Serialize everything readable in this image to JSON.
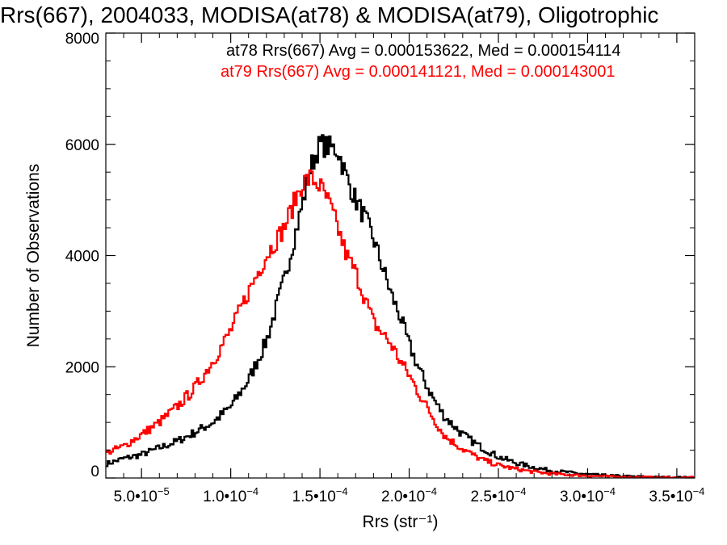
{
  "chart_data": {
    "type": "line",
    "title": "Rrs(667), 2004033, MODISA(at78) & MODISA(at79), Oligotrophic",
    "xlabel": "Rrs (str⁻¹)",
    "ylabel": "Number of Observations",
    "xlim": [
      3e-05,
      0.00036
    ],
    "ylim": [
      0,
      8000
    ],
    "y_ticks": [
      0,
      2000,
      4000,
      6000,
      8000
    ],
    "y_tick_labels": [
      "0",
      "2000",
      "4000",
      "6000",
      "8000"
    ],
    "x_ticks": [
      5e-05,
      0.0001,
      0.00015,
      0.0002,
      0.00025,
      0.0003,
      0.00035
    ],
    "x_tick_labels": [
      {
        "mantissa": "5.0•10",
        "exponent": "−5"
      },
      {
        "mantissa": "1.0•10",
        "exponent": "−4"
      },
      {
        "mantissa": "1.5•10",
        "exponent": "−4"
      },
      {
        "mantissa": "2.0•10",
        "exponent": "−4"
      },
      {
        "mantissa": "2.5•10",
        "exponent": "−4"
      },
      {
        "mantissa": "3.0•10",
        "exponent": "−4"
      },
      {
        "mantissa": "3.5•10",
        "exponent": "−4"
      }
    ],
    "grid": false,
    "series": [
      {
        "name": "at78",
        "color": "#000000",
        "stats": "at78 Rrs(667) Avg = 0.000153622, Med = 0.000154114",
        "points": [
          [
            3e-05,
            250
          ],
          [
            4e-05,
            350
          ],
          [
            5e-05,
            420
          ],
          [
            6e-05,
            540
          ],
          [
            7e-05,
            660
          ],
          [
            8e-05,
            820
          ],
          [
            9e-05,
            1000
          ],
          [
            0.0001,
            1280
          ],
          [
            0.00011,
            1760
          ],
          [
            0.00012,
            2460
          ],
          [
            0.00013,
            3560
          ],
          [
            0.00014,
            4900
          ],
          [
            0.000145,
            5600
          ],
          [
            0.00015,
            6000
          ],
          [
            0.000155,
            5950
          ],
          [
            0.00016,
            5900
          ],
          [
            0.000165,
            5400
          ],
          [
            0.00017,
            5000
          ],
          [
            0.000175,
            4700
          ],
          [
            0.00018,
            4300
          ],
          [
            0.000185,
            3800
          ],
          [
            0.00019,
            3300
          ],
          [
            0.000195,
            2900
          ],
          [
            0.0002,
            2400
          ],
          [
            0.000205,
            2000
          ],
          [
            0.00021,
            1650
          ],
          [
            0.000215,
            1350
          ],
          [
            0.00022,
            1100
          ],
          [
            0.00023,
            780
          ],
          [
            0.00024,
            560
          ],
          [
            0.00025,
            380
          ],
          [
            0.00026,
            270
          ],
          [
            0.00027,
            190
          ],
          [
            0.00028,
            130
          ],
          [
            0.0003,
            65
          ],
          [
            0.00032,
            30
          ],
          [
            0.00034,
            12
          ],
          [
            0.00036,
            5
          ]
        ]
      },
      {
        "name": "at79",
        "color": "#ff0000",
        "stats": "at79 Rrs(667) Avg = 0.000141121, Med = 0.000143001",
        "points": [
          [
            3e-05,
            450
          ],
          [
            4e-05,
            570
          ],
          [
            5e-05,
            780
          ],
          [
            6e-05,
            1000
          ],
          [
            7e-05,
            1280
          ],
          [
            8e-05,
            1620
          ],
          [
            9e-05,
            2100
          ],
          [
            0.0001,
            2650
          ],
          [
            0.00011,
            3350
          ],
          [
            0.00012,
            4000
          ],
          [
            0.00013,
            4500
          ],
          [
            0.000135,
            4900
          ],
          [
            0.00014,
            5300
          ],
          [
            0.000145,
            5400
          ],
          [
            0.00015,
            5250
          ],
          [
            0.000155,
            4950
          ],
          [
            0.00016,
            4500
          ],
          [
            0.000165,
            4000
          ],
          [
            0.00017,
            3700
          ],
          [
            0.000175,
            3250
          ],
          [
            0.00018,
            2800
          ],
          [
            0.000185,
            2600
          ],
          [
            0.00019,
            2400
          ],
          [
            0.000195,
            2100
          ],
          [
            0.0002,
            1850
          ],
          [
            0.000205,
            1550
          ],
          [
            0.00021,
            1270
          ],
          [
            0.000215,
            1000
          ],
          [
            0.00022,
            750
          ],
          [
            0.00023,
            520
          ],
          [
            0.00024,
            340
          ],
          [
            0.00025,
            230
          ],
          [
            0.00026,
            160
          ],
          [
            0.00027,
            110
          ],
          [
            0.00028,
            75
          ],
          [
            0.0003,
            40
          ],
          [
            0.00032,
            18
          ],
          [
            0.00034,
            8
          ],
          [
            0.00036,
            3
          ]
        ]
      }
    ]
  }
}
